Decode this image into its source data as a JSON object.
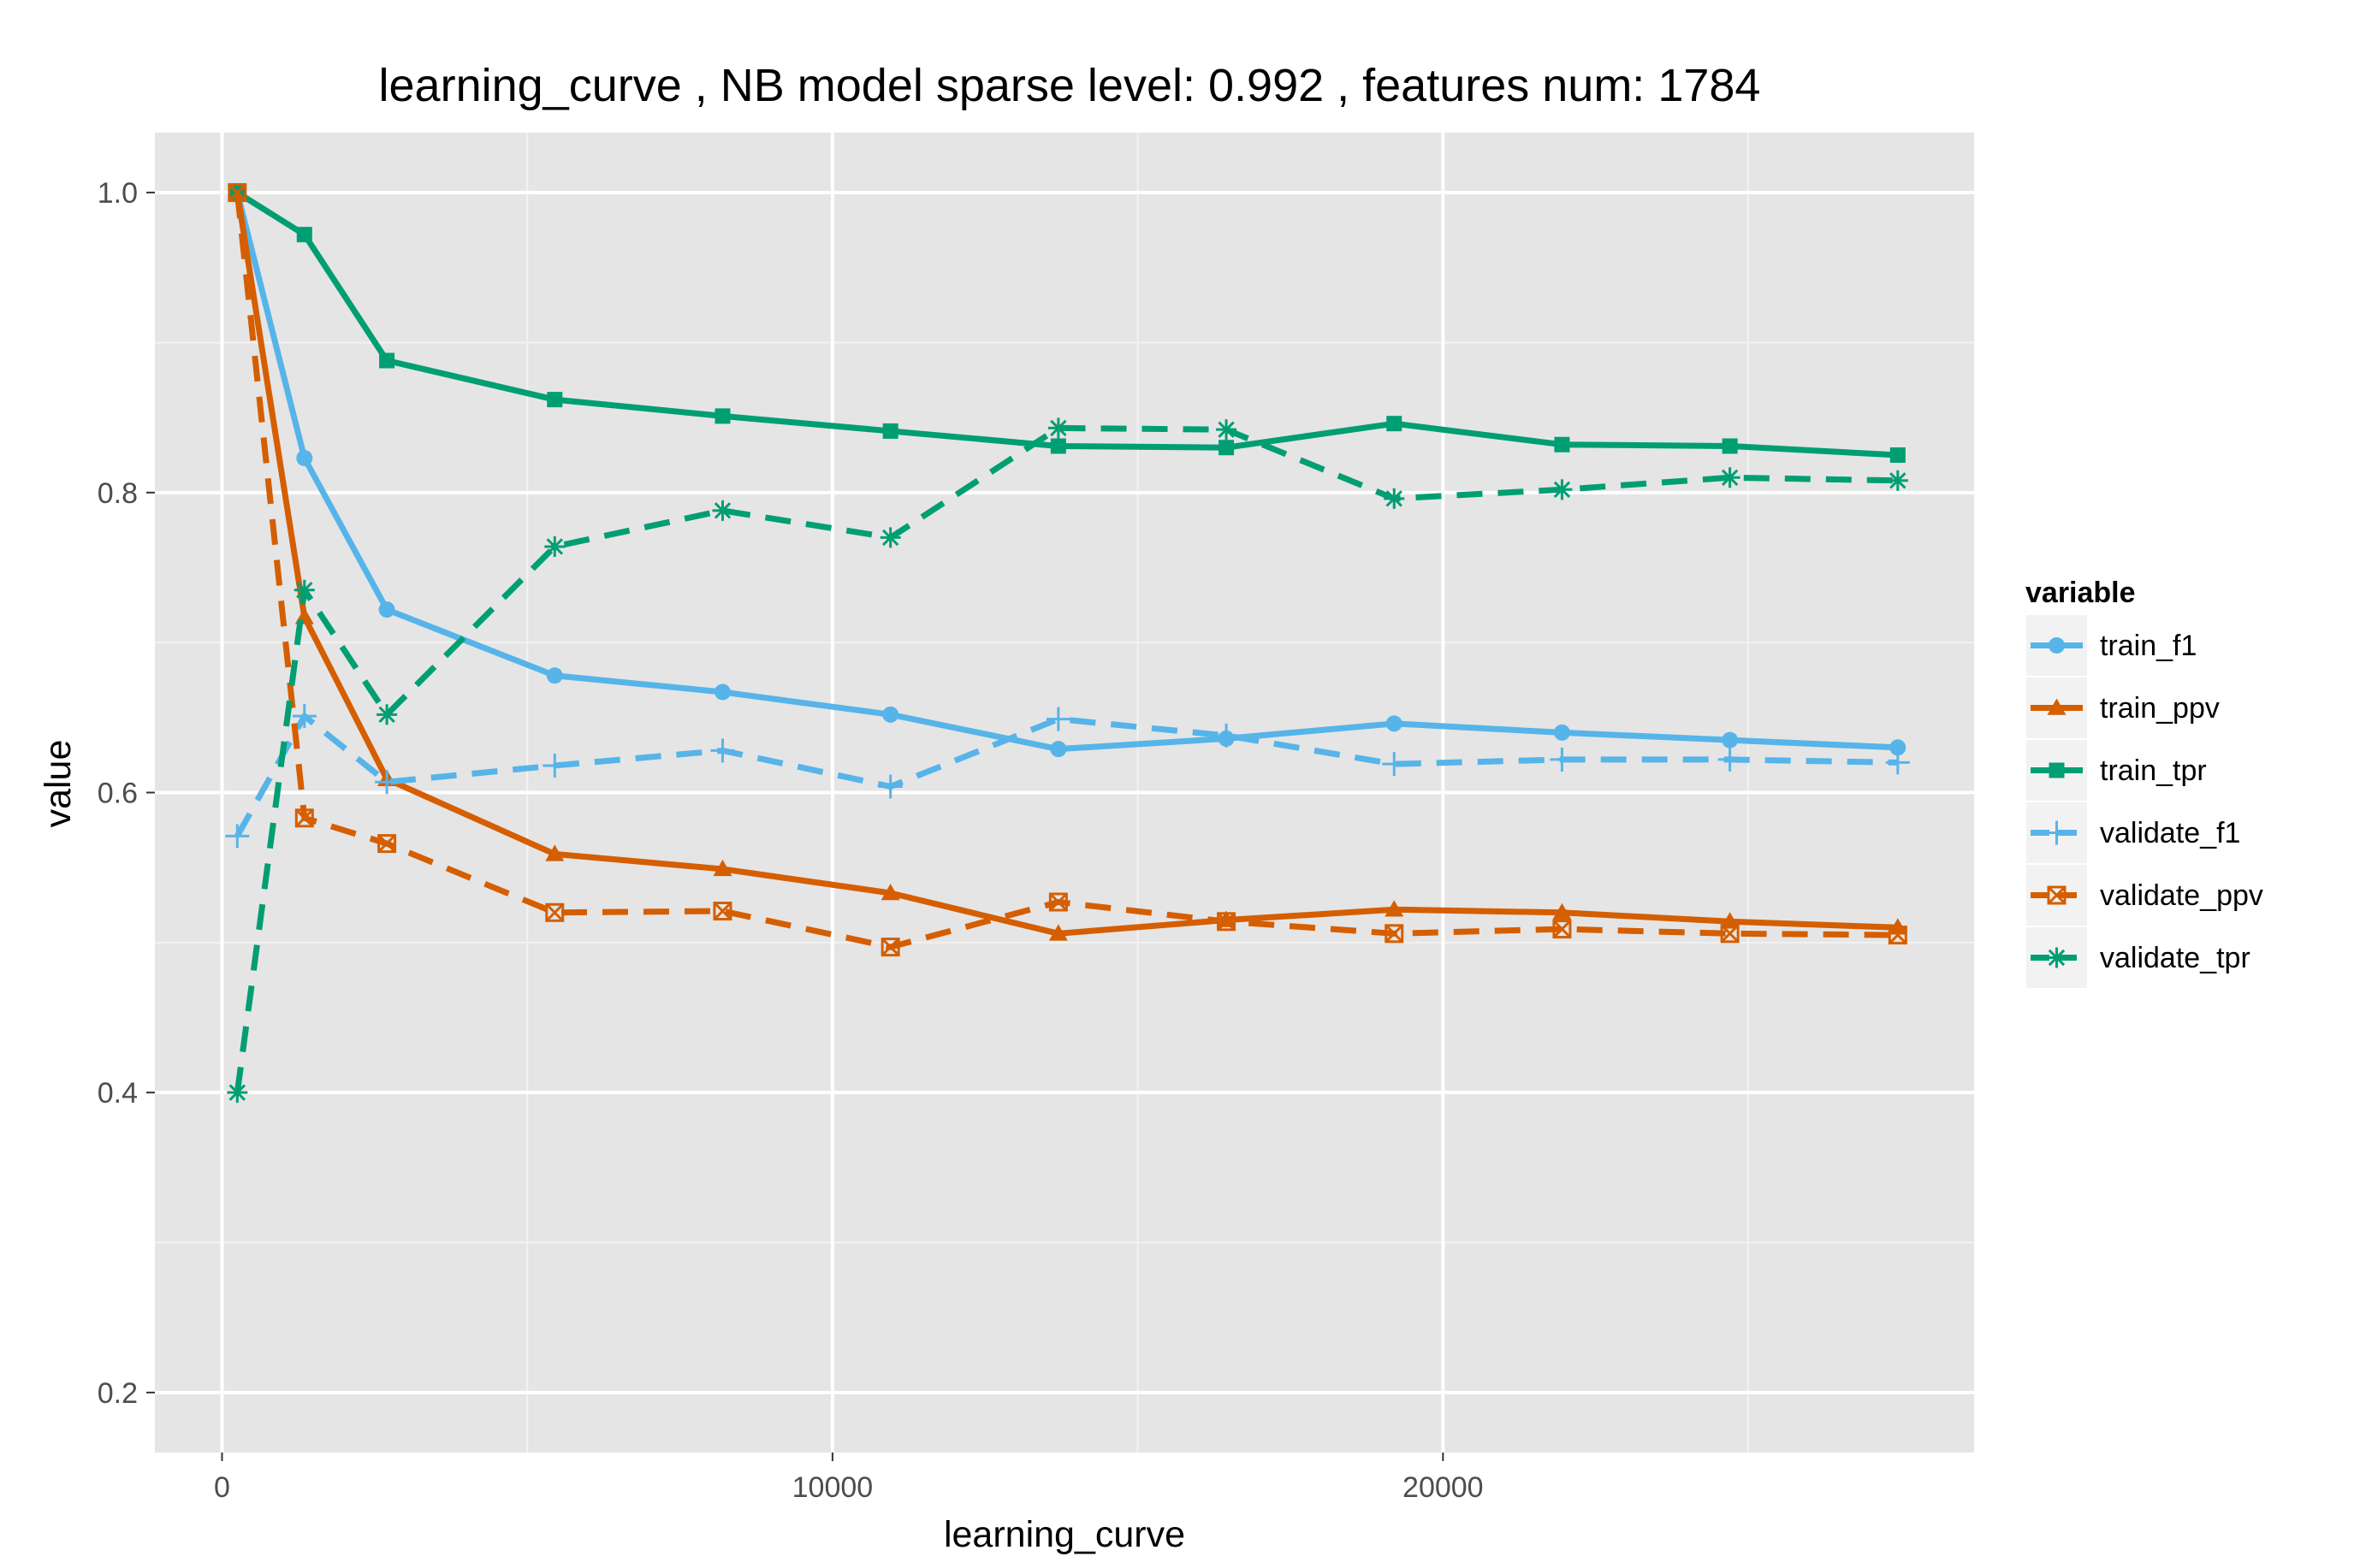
{
  "chart_data": {
    "type": "line",
    "title": "learning_curve ,  NB model sparse level: 0.992 , features num: 1784",
    "xlabel": "learning_curve",
    "ylabel": "value",
    "xlim": [
      -1100,
      28700
    ],
    "ylim": [
      0.16,
      1.04
    ],
    "x_ticks": [
      0,
      10000,
      20000
    ],
    "x_tick_labels": [
      "0",
      "10000",
      "20000"
    ],
    "y_ticks": [
      0.2,
      0.4,
      0.6,
      0.8,
      1.0
    ],
    "y_tick_labels": [
      "0.2",
      "0.4",
      "0.6",
      "0.8",
      "1.0"
    ],
    "grid": true,
    "legend": {
      "title": "variable",
      "position": "right"
    },
    "x": [
      250,
      1350,
      2700,
      5450,
      8200,
      10950,
      13700,
      16450,
      19200,
      21950,
      24700,
      27450
    ],
    "series": [
      {
        "name": "train_f1",
        "color": "#56B4E9",
        "dash": "solid",
        "marker": "circle",
        "values": [
          1.0,
          0.823,
          0.722,
          0.678,
          0.667,
          0.652,
          0.629,
          0.636,
          0.646,
          0.64,
          0.635,
          0.63
        ]
      },
      {
        "name": "train_ppv",
        "color": "#D55E00",
        "dash": "solid",
        "marker": "triangle",
        "values": [
          1.0,
          0.717,
          0.609,
          0.559,
          0.549,
          0.533,
          0.506,
          0.515,
          0.522,
          0.52,
          0.514,
          0.51
        ]
      },
      {
        "name": "train_tpr",
        "color": "#009E73",
        "dash": "solid",
        "marker": "square",
        "values": [
          1.0,
          0.972,
          0.888,
          0.862,
          0.851,
          0.841,
          0.831,
          0.83,
          0.846,
          0.832,
          0.831,
          0.825
        ]
      },
      {
        "name": "validate_f1",
        "color": "#56B4E9",
        "dash": "dashed",
        "marker": "plus",
        "values": [
          0.571,
          0.651,
          0.607,
          0.618,
          0.628,
          0.604,
          0.649,
          0.638,
          0.619,
          0.622,
          0.622,
          0.62
        ]
      },
      {
        "name": "validate_ppv",
        "color": "#D55E00",
        "dash": "dashed",
        "marker": "square-x",
        "values": [
          1.0,
          0.583,
          0.566,
          0.52,
          0.521,
          0.497,
          0.527,
          0.514,
          0.506,
          0.509,
          0.506,
          0.505
        ]
      },
      {
        "name": "validate_tpr",
        "color": "#009E73",
        "dash": "dashed",
        "marker": "asterisk",
        "values": [
          0.4,
          0.735,
          0.652,
          0.764,
          0.788,
          0.77,
          0.843,
          0.842,
          0.796,
          0.802,
          0.81,
          0.808
        ]
      }
    ]
  }
}
